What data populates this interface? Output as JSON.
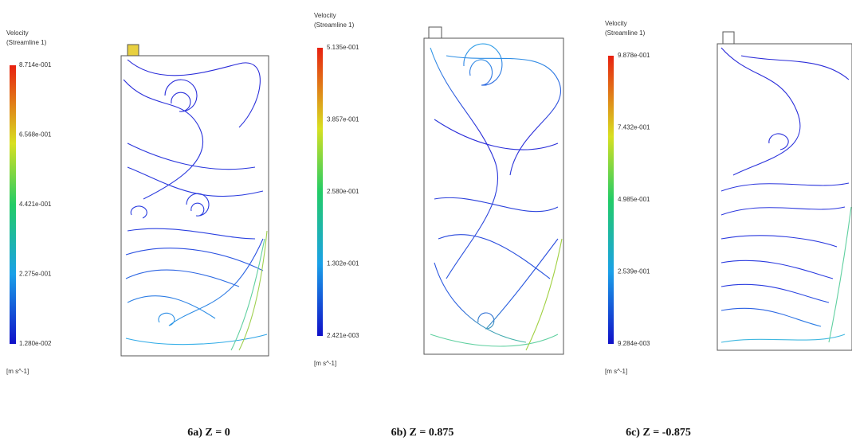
{
  "panels": [
    {
      "title": "Velocity",
      "subtitle": "(Streamline 1)",
      "ticks": [
        "8.714e-001",
        "6.568e-001",
        "4.421e-001",
        "2.275e-001",
        "1.280e-002"
      ],
      "unit": "[m s^-1]",
      "caption": "6a) Z = 0"
    },
    {
      "title": "Velocity",
      "subtitle": "(Streamline 1)",
      "ticks": [
        "5.135e-001",
        "3.857e-001",
        "2.580e-001",
        "1.302e-001",
        "2.421e-003"
      ],
      "unit": "[m s^-1]",
      "caption": "6b) Z = 0.875"
    },
    {
      "title": "Velocity",
      "subtitle": "(Streamline 1)",
      "ticks": [
        "9.878e-001",
        "7.432e-001",
        "4.985e-001",
        "2.539e-001",
        "9.284e-003"
      ],
      "unit": "[m s^-1]",
      "caption": "6c) Z = -0.875"
    }
  ]
}
